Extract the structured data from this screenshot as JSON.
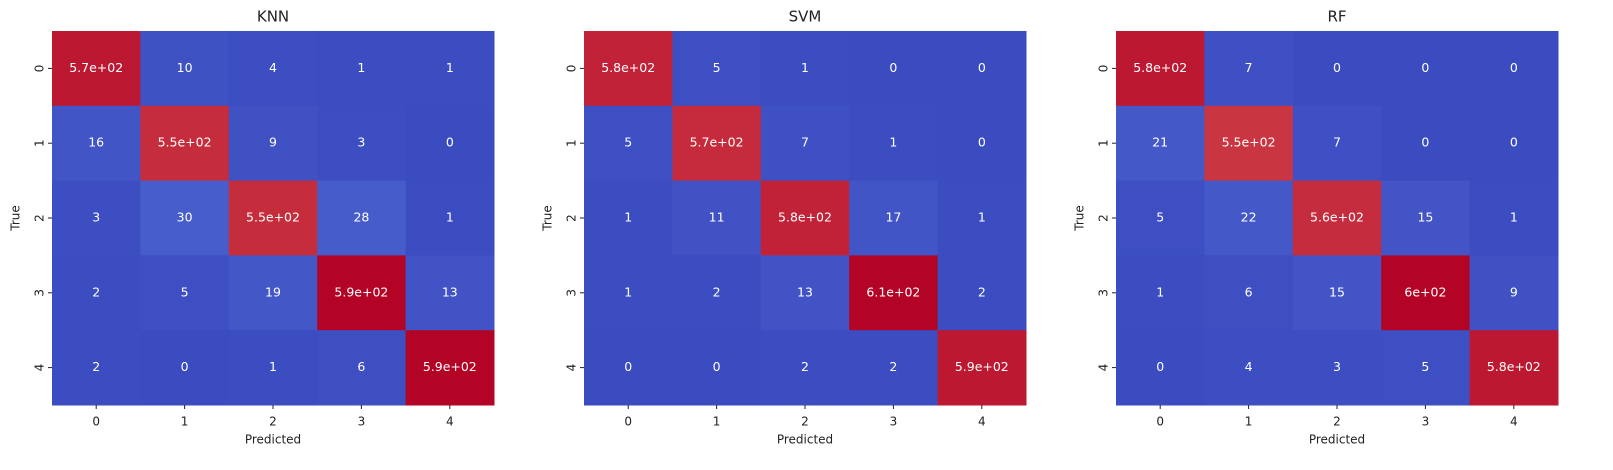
{
  "chart_data": [
    {
      "type": "heatmap",
      "title": "KNN",
      "xlabel": "Predicted",
      "ylabel": "True",
      "colormap": "coolwarm",
      "text_color": "#ffffff",
      "x_categories": [
        "0",
        "1",
        "2",
        "3",
        "4"
      ],
      "y_categories": [
        "0",
        "1",
        "2",
        "3",
        "4"
      ],
      "values": [
        [
          570,
          10,
          4,
          1,
          1
        ],
        [
          16,
          550,
          9,
          3,
          0
        ],
        [
          3,
          30,
          550,
          28,
          1
        ],
        [
          2,
          5,
          19,
          590,
          13
        ],
        [
          2,
          0,
          1,
          6,
          590
        ]
      ],
      "value_labels": [
        [
          "5.7e+02",
          "10",
          "4",
          "1",
          "1"
        ],
        [
          "16",
          "5.5e+02",
          "9",
          "3",
          "0"
        ],
        [
          "3",
          "30",
          "5.5e+02",
          "28",
          "1"
        ],
        [
          "2",
          "5",
          "19",
          "5.9e+02",
          "13"
        ],
        [
          "2",
          "0",
          "1",
          "6",
          "5.9e+02"
        ]
      ]
    },
    {
      "type": "heatmap",
      "title": "SVM",
      "xlabel": "Predicted",
      "ylabel": "True",
      "colormap": "coolwarm",
      "text_color": "#ffffff",
      "x_categories": [
        "0",
        "1",
        "2",
        "3",
        "4"
      ],
      "y_categories": [
        "0",
        "1",
        "2",
        "3",
        "4"
      ],
      "values": [
        [
          580,
          5,
          1,
          0,
          0
        ],
        [
          5,
          570,
          7,
          1,
          0
        ],
        [
          1,
          11,
          580,
          17,
          1
        ],
        [
          1,
          2,
          13,
          610,
          2
        ],
        [
          0,
          0,
          2,
          2,
          590
        ]
      ],
      "value_labels": [
        [
          "5.8e+02",
          "5",
          "1",
          "0",
          "0"
        ],
        [
          "5",
          "5.7e+02",
          "7",
          "1",
          "0"
        ],
        [
          "1",
          "11",
          "5.8e+02",
          "17",
          "1"
        ],
        [
          "1",
          "2",
          "13",
          "6.1e+02",
          "2"
        ],
        [
          "0",
          "0",
          "2",
          "2",
          "5.9e+02"
        ]
      ]
    },
    {
      "type": "heatmap",
      "title": "RF",
      "xlabel": "Predicted",
      "ylabel": "True",
      "colormap": "coolwarm",
      "text_color": "#ffffff",
      "x_categories": [
        "0",
        "1",
        "2",
        "3",
        "4"
      ],
      "y_categories": [
        "0",
        "1",
        "2",
        "3",
        "4"
      ],
      "values": [
        [
          580,
          7,
          0,
          0,
          0
        ],
        [
          21,
          550,
          7,
          0,
          0
        ],
        [
          5,
          22,
          560,
          15,
          1
        ],
        [
          1,
          6,
          15,
          600,
          9
        ],
        [
          0,
          4,
          3,
          5,
          580
        ]
      ],
      "value_labels": [
        [
          "5.8e+02",
          "7",
          "0",
          "0",
          "0"
        ],
        [
          "21",
          "5.5e+02",
          "7",
          "0",
          "0"
        ],
        [
          "5",
          "22",
          "5.6e+02",
          "15",
          "1"
        ],
        [
          "1",
          "6",
          "15",
          "6e+02",
          "9"
        ],
        [
          "0",
          "4",
          "3",
          "5",
          "5.8e+02"
        ]
      ]
    }
  ]
}
